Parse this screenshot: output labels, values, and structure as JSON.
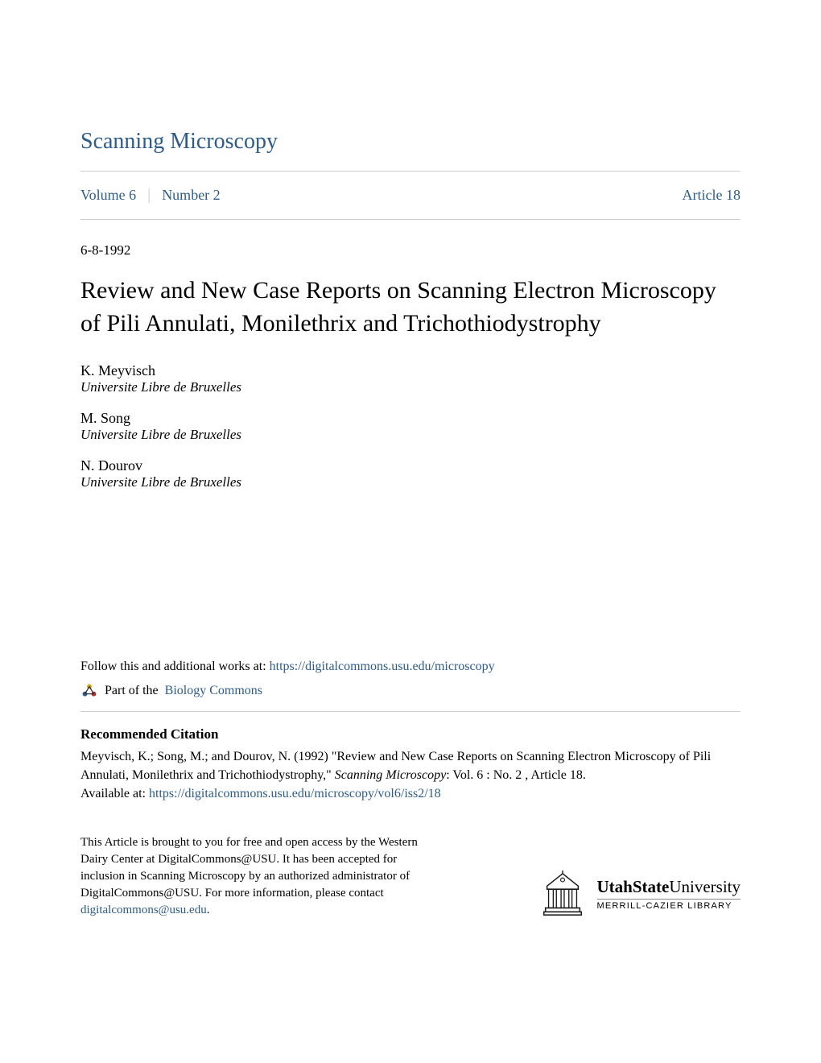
{
  "journal": {
    "title": "Scanning Microscopy",
    "volume_label": "Volume 6",
    "number_label": "Number 2",
    "article_label": "Article 18"
  },
  "article": {
    "date": "6-8-1992",
    "title": "Review and New Case Reports on Scanning Electron Microscopy of Pili Annulati, Monilethrix and Trichothiodystrophy"
  },
  "authors": [
    {
      "name": "K. Meyvisch",
      "affiliation": "Universite Libre de Bruxelles"
    },
    {
      "name": "M. Song",
      "affiliation": "Universite Libre de Bruxelles"
    },
    {
      "name": "N. Dourov",
      "affiliation": "Universite Libre de Bruxelles"
    }
  ],
  "follow": {
    "prefix": "Follow this and additional works at: ",
    "url": "https://digitalcommons.usu.edu/microscopy",
    "part_of_prefix": "Part of the ",
    "commons_link": "Biology Commons"
  },
  "citation": {
    "heading": "Recommended Citation",
    "text_line1": "Meyvisch, K.; Song, M.; and Dourov, N. (1992) \"Review and New Case Reports on Scanning Electron Microscopy of Pili Annulati, Monilethrix and Trichothiodystrophy,\" ",
    "journal_italic": "Scanning Microscopy",
    "text_line2": ": Vol. 6 : No. 2 , Article 18.",
    "available_prefix": "Available at: ",
    "available_url": "https://digitalcommons.usu.edu/microscopy/vol6/iss2/18"
  },
  "footer": {
    "text_before": "This Article is brought to you for free and open access by the Western Dairy Center at DigitalCommons@USU. It has been accepted for inclusion in Scanning Microscopy by an authorized administrator of DigitalCommons@USU. For more information, please contact ",
    "email": "digitalcommons@usu.edu",
    "text_after": ".",
    "university_bold": "UtahState",
    "university_light": "University",
    "library": "MERRILL-CAZIER LIBRARY"
  },
  "colors": {
    "link": "#2e5c8a",
    "text": "#000000",
    "divider": "#cccccc",
    "background": "#ffffff"
  }
}
